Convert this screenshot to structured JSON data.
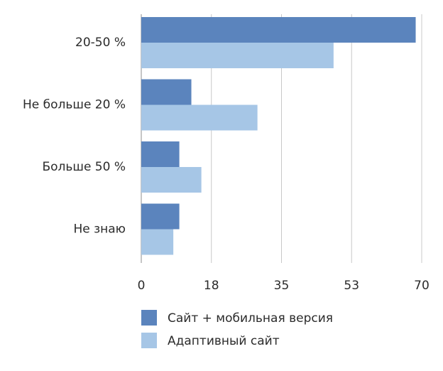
{
  "chart_data": {
    "type": "bar",
    "orientation": "horizontal",
    "title": "",
    "xlabel": "",
    "ylabel": "",
    "categories": [
      "20-50 %",
      "Не больше 20 %",
      "Больше 50 %",
      "Не знаю"
    ],
    "series": [
      {
        "name": "Сайт + мобильная версия",
        "color": "#5b84bd",
        "values": [
          68.5,
          12.5,
          9.5,
          9.5
        ]
      },
      {
        "name": "Адаптивный сайт",
        "color": "#a6c6e6",
        "values": [
          48,
          29,
          15,
          8
        ]
      }
    ],
    "xlim": [
      0,
      70
    ],
    "xticks": [
      {
        "value": 0,
        "label": "0"
      },
      {
        "value": 17.5,
        "label": "18"
      },
      {
        "value": 35,
        "label": "35"
      },
      {
        "value": 52.5,
        "label": "53"
      },
      {
        "value": 70,
        "label": "70"
      }
    ],
    "grid": "vertical",
    "legend_position": "bottom"
  }
}
